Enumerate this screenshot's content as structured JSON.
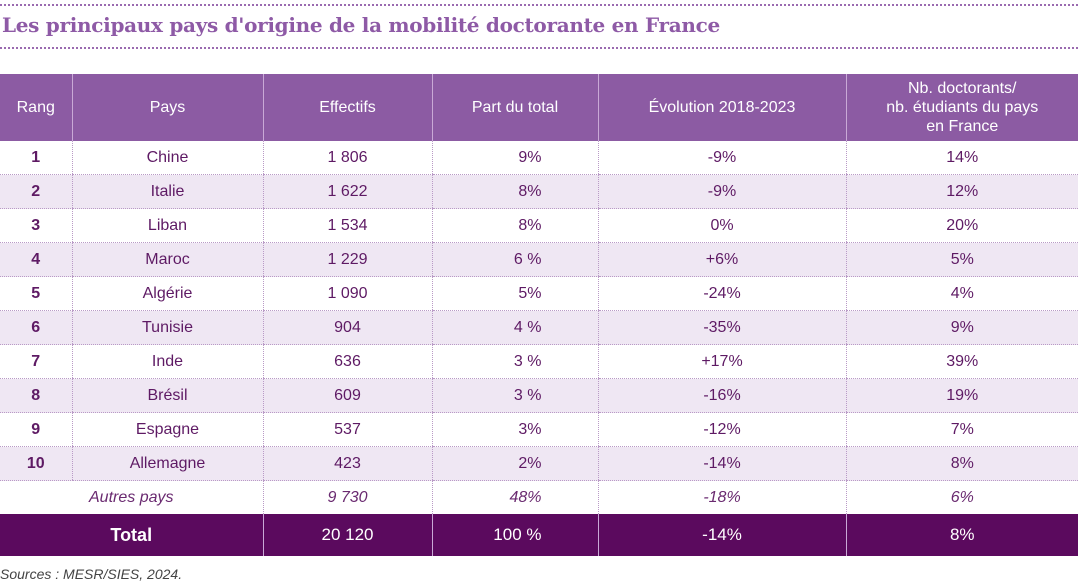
{
  "title": "Les principaux pays d'origine de la mobilité doctorante en France",
  "table": {
    "headers": {
      "rang": "Rang",
      "pays": "Pays",
      "effectifs": "Effectifs",
      "part": "Part du total",
      "evolution": "Évolution 2018-2023",
      "ratio_line1": "Nb. doctorants/",
      "ratio_line2": "nb. étudiants du pays",
      "ratio_line3": "en France"
    },
    "rows": [
      {
        "rang": "1",
        "pays": "Chine",
        "effectifs": "1 806",
        "part": "9%",
        "evolution": "-9%",
        "ratio": "14%"
      },
      {
        "rang": "2",
        "pays": "Italie",
        "effectifs": "1 622",
        "part": "8%",
        "evolution": "-9%",
        "ratio": "12%"
      },
      {
        "rang": "3",
        "pays": "Liban",
        "effectifs": "1 534",
        "part": "8%",
        "evolution": "0%",
        "ratio": "20%"
      },
      {
        "rang": "4",
        "pays": "Maroc",
        "effectifs": "1 229",
        "part": "6 %",
        "evolution": "+6%",
        "ratio": "5%"
      },
      {
        "rang": "5",
        "pays": "Algérie",
        "effectifs": "1 090",
        "part": "5%",
        "evolution": "-24%",
        "ratio": "4%"
      },
      {
        "rang": "6",
        "pays": "Tunisie",
        "effectifs": "904",
        "part": "4 %",
        "evolution": "-35%",
        "ratio": "9%"
      },
      {
        "rang": "7",
        "pays": "Inde",
        "effectifs": "636",
        "part": "3 %",
        "evolution": "+17%",
        "ratio": "39%"
      },
      {
        "rang": "8",
        "pays": "Brésil",
        "effectifs": "609",
        "part": "3 %",
        "evolution": "-16%",
        "ratio": "19%"
      },
      {
        "rang": "9",
        "pays": "Espagne",
        "effectifs": "537",
        "part": "3%",
        "evolution": "-12%",
        "ratio": "7%"
      },
      {
        "rang": "10",
        "pays": "Allemagne",
        "effectifs": "423",
        "part": "2%",
        "evolution": "-14%",
        "ratio": "8%"
      }
    ],
    "other": {
      "label": "Autres pays",
      "effectifs": "9 730",
      "part": "48%",
      "evolution": "-18%",
      "ratio": "6%"
    },
    "total": {
      "label": "Total",
      "effectifs": "20 120",
      "part": "100 %",
      "evolution": "-14%",
      "ratio": "8%"
    }
  },
  "sources": "Sources : MESR/SIES, 2024.",
  "colors": {
    "header": "#8c5ba3",
    "total": "#5b0a5e",
    "alt_row": "#efe7f3",
    "title": "#8e5aa6"
  }
}
